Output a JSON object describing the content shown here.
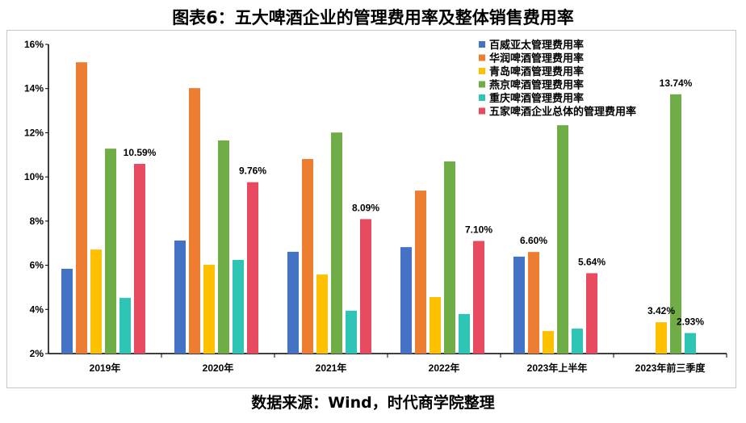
{
  "title": "图表6：五大啤酒企业的管理费用率及整体销售费用率",
  "source": "数据来源：Wind，时代商学院整理",
  "chart_data": {
    "type": "bar",
    "categories": [
      "2019年",
      "2020年",
      "2021年",
      "2022年",
      "2023年上半年",
      "2023年前三季度"
    ],
    "ylim": [
      2,
      16
    ],
    "yticks": [
      2,
      4,
      6,
      8,
      10,
      12,
      14,
      16
    ],
    "ytick_labels": [
      "2%",
      "4%",
      "6%",
      "8%",
      "10%",
      "12%",
      "14%",
      "16%"
    ],
    "legend_position": "top-right",
    "series": [
      {
        "name": "百威亚太管理费用率",
        "color": "#4472c4",
        "values": [
          5.84,
          7.12,
          6.61,
          6.82,
          6.39,
          null
        ]
      },
      {
        "name": "华润啤酒管理费用率",
        "color": "#ed7d31",
        "values": [
          15.19,
          14.02,
          10.81,
          9.38,
          6.6,
          null
        ]
      },
      {
        "name": "青岛啤酒管理费用率",
        "color": "#ffc000",
        "values": [
          6.71,
          6.02,
          5.58,
          4.56,
          3.02,
          3.42
        ]
      },
      {
        "name": "燕京啤酒管理费用率",
        "color": "#70ad47",
        "values": [
          11.28,
          11.65,
          12.01,
          10.7,
          12.34,
          13.74
        ]
      },
      {
        "name": "重庆啤酒管理费用率",
        "color": "#2ec4b6",
        "values": [
          4.52,
          6.24,
          3.94,
          3.79,
          3.13,
          2.93
        ]
      },
      {
        "name": "五家啤酒企业总体的管理费用率",
        "color": "#e84a5f",
        "values": [
          10.59,
          9.76,
          8.09,
          7.1,
          5.64,
          null
        ]
      }
    ],
    "data_labels": [
      {
        "series": 5,
        "category": 0,
        "text": "10.59%"
      },
      {
        "series": 5,
        "category": 1,
        "text": "9.76%"
      },
      {
        "series": 5,
        "category": 2,
        "text": "8.09%"
      },
      {
        "series": 5,
        "category": 3,
        "text": "7.10%"
      },
      {
        "series": 1,
        "category": 4,
        "text": "6.60%"
      },
      {
        "series": 5,
        "category": 4,
        "text": "5.64%"
      },
      {
        "series": 2,
        "category": 5,
        "text": "3.42%"
      },
      {
        "series": 3,
        "category": 5,
        "text": "13.74%"
      },
      {
        "series": 4,
        "category": 5,
        "text": "2.93%"
      }
    ]
  }
}
